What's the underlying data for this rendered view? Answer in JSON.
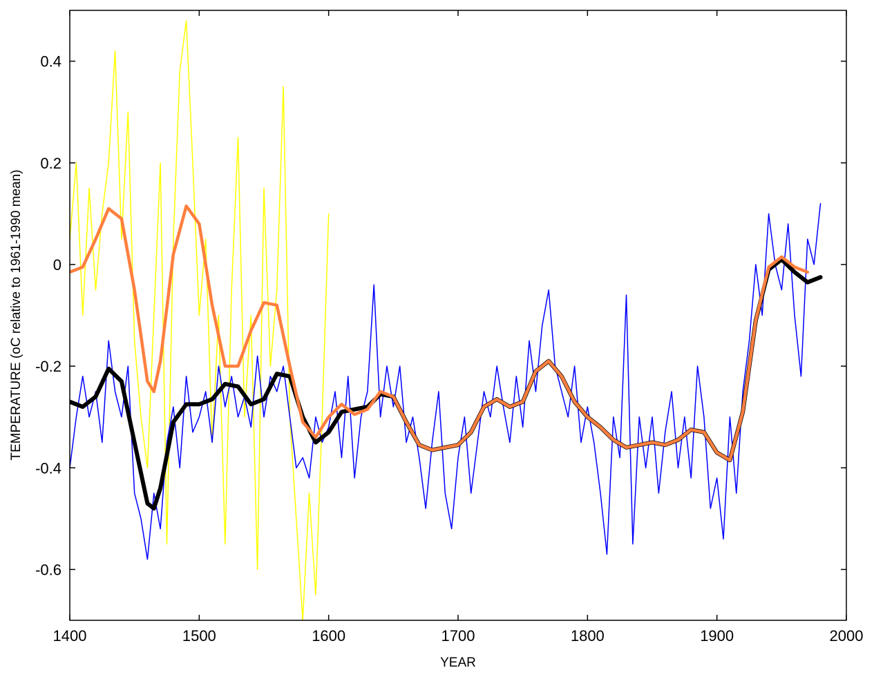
{
  "chart_data": {
    "type": "line",
    "xlabel": "YEAR",
    "ylabel": "TEMPERATURE (oC relative to 1961-1990 mean)",
    "xlim": [
      1400,
      2000
    ],
    "xticks": [
      1400,
      1500,
      1600,
      1700,
      1800,
      1900,
      2000
    ],
    "ylim": [
      -0.7,
      0.5
    ],
    "yticks": [
      -0.6,
      -0.4,
      -0.2,
      0,
      0.2,
      0.4
    ],
    "grid": false,
    "series": [
      {
        "color": "#ffff00",
        "x": [
          1400,
          1405,
          1410,
          1415,
          1420,
          1425,
          1430,
          1435,
          1440,
          1445,
          1450,
          1455,
          1460,
          1465,
          1470,
          1475,
          1480,
          1485,
          1490,
          1495,
          1500,
          1505,
          1510,
          1515,
          1520,
          1525,
          1530,
          1535,
          1540,
          1545,
          1550,
          1555,
          1560,
          1565,
          1570,
          1575,
          1580,
          1585,
          1590,
          1595,
          1600
        ],
        "values": [
          0.05,
          0.2,
          -0.1,
          0.15,
          -0.05,
          0.1,
          0.2,
          0.42,
          0.05,
          0.3,
          -0.15,
          -0.3,
          -0.4,
          -0.1,
          0.2,
          -0.55,
          0.05,
          0.38,
          0.48,
          0.2,
          -0.1,
          0.05,
          -0.35,
          -0.1,
          -0.55,
          -0.05,
          0.25,
          -0.3,
          -0.1,
          -0.6,
          0.15,
          -0.2,
          -0.05,
          0.35,
          -0.3,
          -0.5,
          -0.7,
          -0.45,
          -0.65,
          -0.3,
          0.1
        ]
      },
      {
        "color": "#0000ff",
        "x": [
          1400,
          1405,
          1410,
          1415,
          1420,
          1425,
          1430,
          1435,
          1440,
          1445,
          1450,
          1455,
          1460,
          1465,
          1470,
          1475,
          1480,
          1485,
          1490,
          1495,
          1500,
          1505,
          1510,
          1515,
          1520,
          1525,
          1530,
          1535,
          1540,
          1545,
          1550,
          1555,
          1560,
          1565,
          1570,
          1575,
          1580,
          1585,
          1590,
          1595,
          1600,
          1605,
          1610,
          1615,
          1620,
          1625,
          1630,
          1635,
          1640,
          1645,
          1650,
          1655,
          1660,
          1665,
          1670,
          1675,
          1680,
          1685,
          1690,
          1695,
          1700,
          1705,
          1710,
          1715,
          1720,
          1725,
          1730,
          1735,
          1740,
          1745,
          1750,
          1755,
          1760,
          1765,
          1770,
          1775,
          1780,
          1785,
          1790,
          1795,
          1800,
          1805,
          1810,
          1815,
          1820,
          1825,
          1830,
          1835,
          1840,
          1845,
          1850,
          1855,
          1860,
          1865,
          1870,
          1875,
          1880,
          1885,
          1890,
          1895,
          1900,
          1905,
          1910,
          1915,
          1920,
          1925,
          1930,
          1935,
          1940,
          1945,
          1950,
          1955,
          1960,
          1965,
          1970,
          1975,
          1980
        ],
        "values": [
          -0.4,
          -0.3,
          -0.22,
          -0.3,
          -0.25,
          -0.35,
          -0.15,
          -0.25,
          -0.3,
          -0.2,
          -0.45,
          -0.5,
          -0.58,
          -0.45,
          -0.52,
          -0.35,
          -0.28,
          -0.4,
          -0.22,
          -0.33,
          -0.3,
          -0.25,
          -0.35,
          -0.2,
          -0.28,
          -0.22,
          -0.3,
          -0.26,
          -0.32,
          -0.18,
          -0.3,
          -0.22,
          -0.25,
          -0.2,
          -0.3,
          -0.4,
          -0.38,
          -0.42,
          -0.3,
          -0.35,
          -0.32,
          -0.25,
          -0.38,
          -0.22,
          -0.42,
          -0.3,
          -0.25,
          -0.04,
          -0.3,
          -0.2,
          -0.28,
          -0.2,
          -0.35,
          -0.3,
          -0.38,
          -0.48,
          -0.35,
          -0.25,
          -0.45,
          -0.52,
          -0.38,
          -0.3,
          -0.45,
          -0.35,
          -0.25,
          -0.3,
          -0.2,
          -0.28,
          -0.35,
          -0.22,
          -0.32,
          -0.15,
          -0.25,
          -0.12,
          -0.05,
          -0.2,
          -0.25,
          -0.3,
          -0.2,
          -0.35,
          -0.28,
          -0.35,
          -0.45,
          -0.57,
          -0.3,
          -0.38,
          -0.06,
          -0.55,
          -0.3,
          -0.4,
          -0.3,
          -0.45,
          -0.33,
          -0.25,
          -0.4,
          -0.3,
          -0.42,
          -0.2,
          -0.3,
          -0.48,
          -0.42,
          -0.54,
          -0.3,
          -0.45,
          -0.25,
          -0.15,
          0.0,
          -0.1,
          0.1,
          0.0,
          -0.05,
          0.08,
          -0.1,
          -0.22,
          0.05,
          0.0,
          0.12
        ]
      },
      {
        "color": "#000000",
        "x": [
          1400,
          1410,
          1420,
          1430,
          1440,
          1450,
          1460,
          1465,
          1470,
          1480,
          1490,
          1500,
          1510,
          1520,
          1530,
          1540,
          1550,
          1560,
          1570,
          1580,
          1590,
          1600,
          1610,
          1620,
          1630,
          1640,
          1650,
          1660,
          1670,
          1680,
          1690,
          1700,
          1710,
          1720,
          1730,
          1740,
          1750,
          1760,
          1770,
          1780,
          1790,
          1800,
          1810,
          1820,
          1830,
          1840,
          1850,
          1860,
          1870,
          1880,
          1890,
          1900,
          1910,
          1920,
          1930,
          1940,
          1950,
          1960,
          1970,
          1980
        ],
        "values": [
          -0.27,
          -0.28,
          -0.26,
          -0.205,
          -0.23,
          -0.35,
          -0.47,
          -0.48,
          -0.44,
          -0.31,
          -0.275,
          -0.275,
          -0.265,
          -0.235,
          -0.24,
          -0.275,
          -0.265,
          -0.215,
          -0.22,
          -0.3,
          -0.35,
          -0.33,
          -0.29,
          -0.285,
          -0.28,
          -0.255,
          -0.26,
          -0.31,
          -0.355,
          -0.365,
          -0.36,
          -0.355,
          -0.33,
          -0.28,
          -0.265,
          -0.28,
          -0.27,
          -0.21,
          -0.19,
          -0.22,
          -0.27,
          -0.3,
          -0.32,
          -0.345,
          -0.36,
          -0.355,
          -0.35,
          -0.355,
          -0.345,
          -0.325,
          -0.33,
          -0.37,
          -0.385,
          -0.29,
          -0.11,
          -0.01,
          0.01,
          -0.015,
          -0.035,
          -0.025
        ]
      },
      {
        "color": "#ff7f3f",
        "x": [
          1400,
          1410,
          1420,
          1430,
          1440,
          1450,
          1460,
          1465,
          1470,
          1480,
          1490,
          1500,
          1510,
          1520,
          1530,
          1540,
          1550,
          1560,
          1570,
          1580,
          1590,
          1600,
          1610,
          1620,
          1630,
          1640,
          1650,
          1660,
          1670,
          1680,
          1690,
          1700,
          1710,
          1720,
          1730,
          1740,
          1750,
          1760,
          1770,
          1780,
          1790,
          1800,
          1810,
          1820,
          1830,
          1840,
          1850,
          1860,
          1870,
          1880,
          1890,
          1900,
          1910,
          1920,
          1930,
          1940,
          1950,
          1960,
          1970
        ],
        "values": [
          -0.015,
          -0.005,
          0.05,
          0.11,
          0.09,
          -0.05,
          -0.23,
          -0.25,
          -0.19,
          0.02,
          0.115,
          0.08,
          -0.08,
          -0.2,
          -0.2,
          -0.13,
          -0.075,
          -0.08,
          -0.2,
          -0.31,
          -0.34,
          -0.3,
          -0.275,
          -0.295,
          -0.285,
          -0.25,
          -0.26,
          -0.31,
          -0.355,
          -0.365,
          -0.36,
          -0.355,
          -0.33,
          -0.28,
          -0.265,
          -0.28,
          -0.27,
          -0.21,
          -0.19,
          -0.22,
          -0.27,
          -0.3,
          -0.32,
          -0.345,
          -0.36,
          -0.355,
          -0.35,
          -0.355,
          -0.345,
          -0.325,
          -0.33,
          -0.37,
          -0.385,
          -0.29,
          -0.11,
          -0.005,
          0.015,
          -0.005,
          -0.015
        ]
      }
    ]
  }
}
